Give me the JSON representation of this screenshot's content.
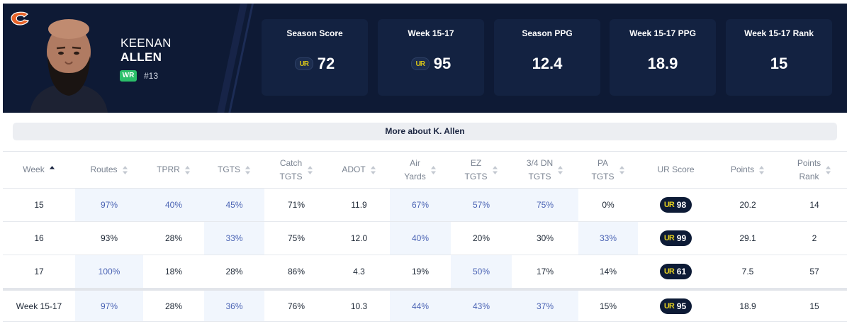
{
  "player": {
    "first_name": "KEENAN",
    "last_name": "ALLEN",
    "position": "WR",
    "jersey": "#13",
    "team_logo_icon": "bears-c-logo-icon"
  },
  "stats": [
    {
      "label": "Season Score",
      "value": "72",
      "has_logo": true
    },
    {
      "label": "Week 15-17",
      "value": "95",
      "has_logo": true
    },
    {
      "label": "Season PPG",
      "value": "12.4",
      "has_logo": false
    },
    {
      "label": "Week 15-17 PPG",
      "value": "18.9",
      "has_logo": false
    },
    {
      "label": "Week 15-17 Rank",
      "value": "15",
      "has_logo": false
    }
  ],
  "ur_logo_text": "UR",
  "more_label": "More about K. Allen",
  "columns": [
    {
      "line1": "Week",
      "line2": ""
    },
    {
      "line1": "Routes",
      "line2": ""
    },
    {
      "line1": "TPRR",
      "line2": ""
    },
    {
      "line1": "TGTS",
      "line2": ""
    },
    {
      "line1": "Catch",
      "line2": "TGTS"
    },
    {
      "line1": "ADOT",
      "line2": ""
    },
    {
      "line1": "Air",
      "line2": "Yards"
    },
    {
      "line1": "EZ",
      "line2": "TGTS"
    },
    {
      "line1": "3/4 DN",
      "line2": "TGTS"
    },
    {
      "line1": "PA",
      "line2": "TGTS"
    },
    {
      "line1": "UR Score",
      "line2": ""
    },
    {
      "line1": "Points",
      "line2": ""
    },
    {
      "line1": "Points",
      "line2": "Rank"
    }
  ],
  "rows": [
    {
      "cells": [
        "15",
        "97%",
        "40%",
        "45%",
        "71%",
        "11.9",
        "67%",
        "57%",
        "75%",
        "0%",
        "98",
        "20.2",
        "14"
      ],
      "highlight": [
        1,
        2,
        3,
        6,
        7,
        8
      ]
    },
    {
      "cells": [
        "16",
        "93%",
        "28%",
        "33%",
        "75%",
        "12.0",
        "40%",
        "20%",
        "30%",
        "33%",
        "99",
        "29.1",
        "2"
      ],
      "highlight": [
        3,
        6,
        9
      ]
    },
    {
      "cells": [
        "17",
        "100%",
        "18%",
        "28%",
        "86%",
        "4.3",
        "19%",
        "50%",
        "17%",
        "14%",
        "61",
        "7.5",
        "57"
      ],
      "highlight": [
        1,
        7
      ]
    },
    {
      "cells": [
        "Week 15-17",
        "97%",
        "28%",
        "36%",
        "76%",
        "10.3",
        "44%",
        "43%",
        "37%",
        "15%",
        "95",
        "18.9",
        "15"
      ],
      "highlight": [
        1,
        3,
        6,
        7,
        8
      ]
    }
  ],
  "colors": {
    "header_bg": "#0e1a35",
    "card_bg": "#132241",
    "highlight_bg": "#f1f6fd",
    "highlight_text": "#4a63b4",
    "badge_green": "#2bbf6a",
    "ur_yellow": "#e3cf1f"
  }
}
